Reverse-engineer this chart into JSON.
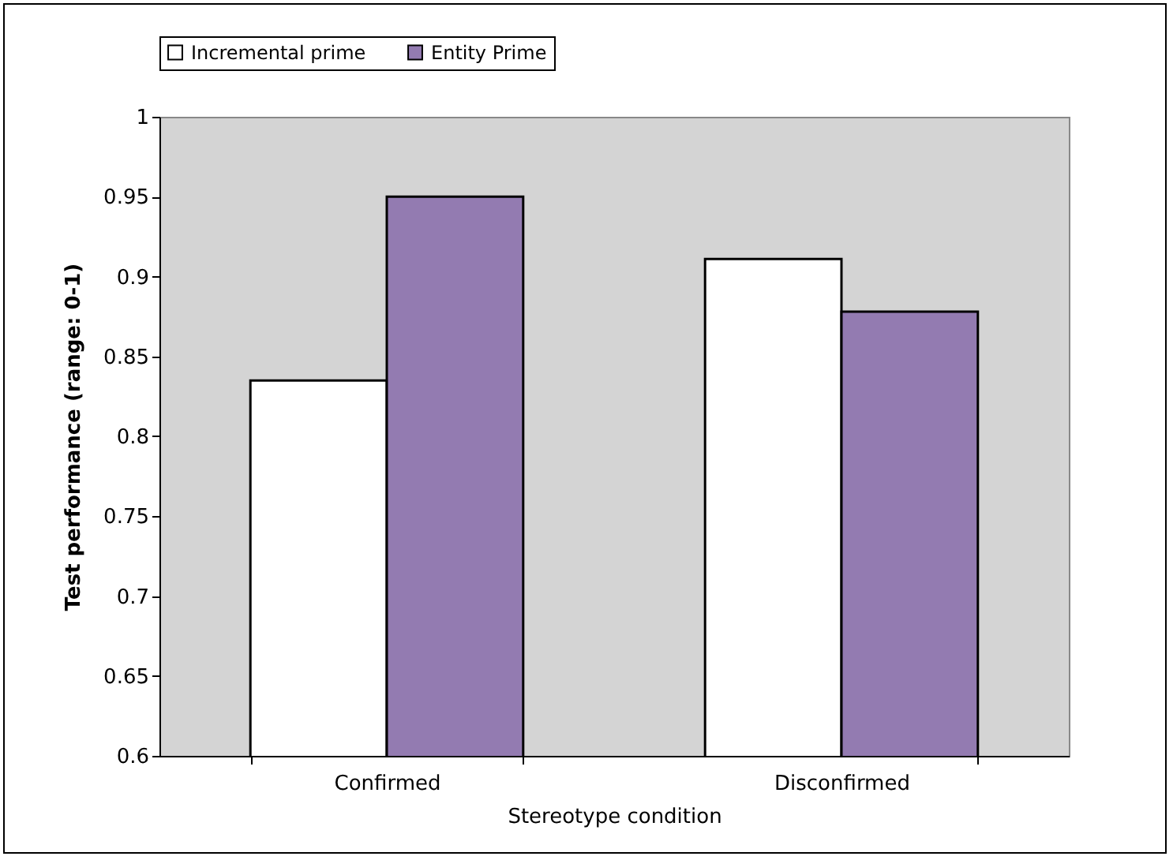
{
  "chart_data": {
    "type": "bar",
    "xlabel": "Stereotype condition",
    "ylabel": "Test performance (range: 0-1)",
    "categories": [
      "Confirmed",
      "Disconfirmed"
    ],
    "series": [
      {
        "name": "Incremental prime",
        "color": "#ffffff",
        "values": [
          0.835,
          0.911
        ]
      },
      {
        "name": "Entity Prime",
        "color": "#937bb1",
        "values": [
          0.95,
          0.878
        ]
      }
    ],
    "ylim": [
      0.6,
      1
    ],
    "yticks": [
      {
        "value": 0.6,
        "label": "0.6"
      },
      0.65,
      0.7,
      0.75,
      0.8,
      0.85,
      0.9,
      0.95,
      1
    ],
    "grid": false,
    "legend": "top"
  }
}
